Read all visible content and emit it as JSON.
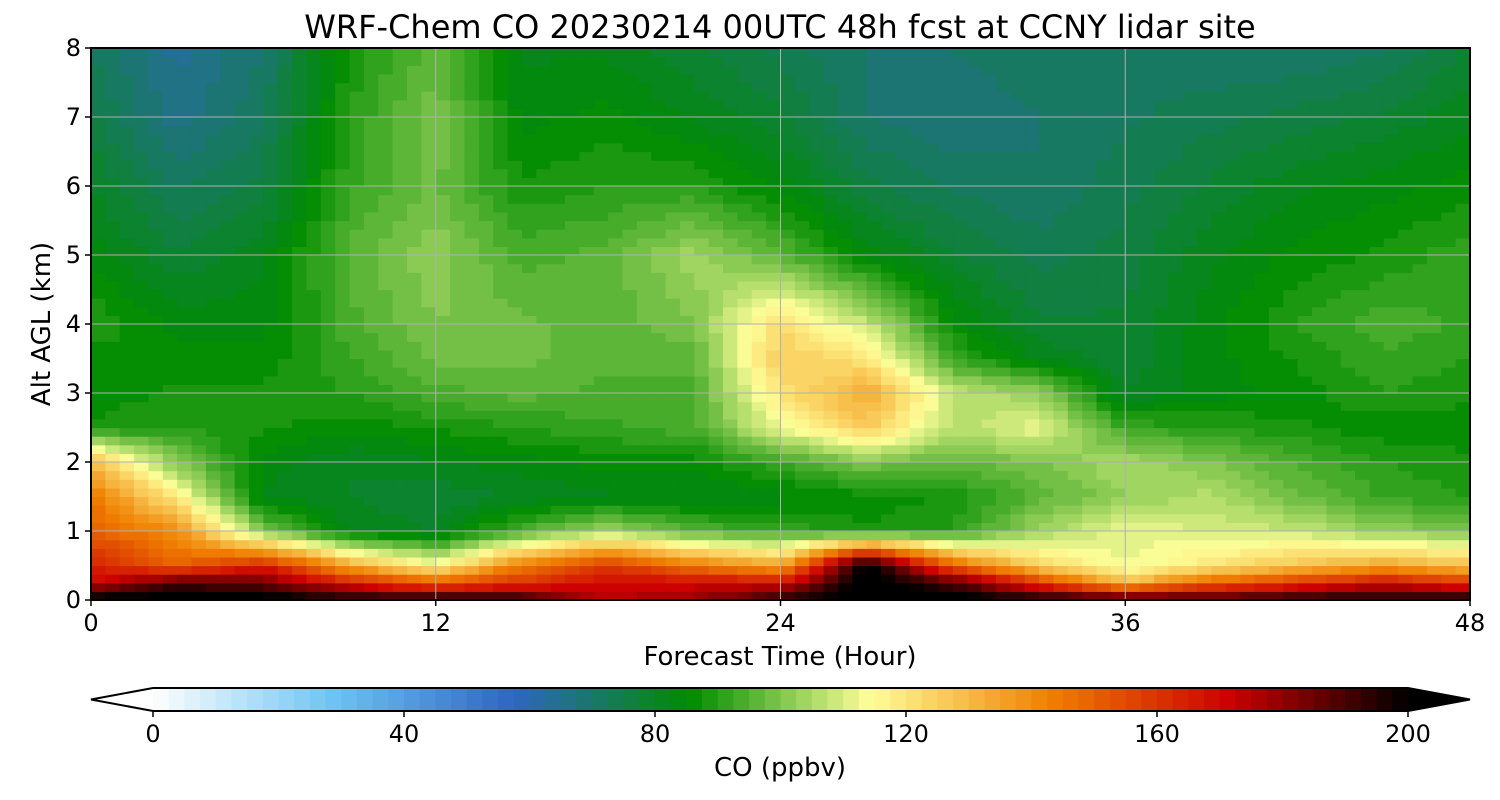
{
  "chart_data": {
    "type": "heatmap",
    "title": "WRF-Chem CO  20230214 00UTC 48h fcst at CCNY lidar site",
    "xlabel": "Forecast Time (Hour)",
    "ylabel": "Alt AGL (km)",
    "xlim": [
      0,
      48
    ],
    "ylim": [
      0,
      8
    ],
    "xticks": [
      "0",
      "12",
      "24",
      "36",
      "48"
    ],
    "yticks": [
      "0",
      "1",
      "2",
      "3",
      "4",
      "5",
      "6",
      "7",
      "8"
    ],
    "grid": true,
    "x_hours": [
      0,
      3,
      6,
      9,
      12,
      15,
      18,
      21,
      24,
      27,
      30,
      33,
      36,
      39,
      42,
      45,
      48
    ],
    "y_km": [
      0,
      0.25,
      0.5,
      1,
      1.5,
      2,
      2.5,
      3,
      3.5,
      4,
      5,
      6,
      7,
      8
    ],
    "values_ppbv": [
      [
        205,
        205,
        205,
        200,
        200,
        198,
        175,
        180,
        195,
        205,
        205,
        200,
        198,
        195,
        198,
        200,
        200
      ],
      [
        170,
        190,
        185,
        165,
        150,
        160,
        170,
        170,
        170,
        205,
        190,
        160,
        130,
        150,
        160,
        170,
        160
      ],
      [
        165,
        150,
        165,
        135,
        115,
        145,
        160,
        145,
        135,
        205,
        150,
        125,
        112,
        120,
        128,
        135,
        128
      ],
      [
        150,
        140,
        100,
        82,
        80,
        95,
        105,
        95,
        92,
        88,
        90,
        104,
        112,
        110,
        108,
        102,
        100
      ],
      [
        145,
        118,
        82,
        80,
        78,
        80,
        82,
        82,
        84,
        86,
        88,
        96,
        102,
        106,
        98,
        92,
        90
      ],
      [
        130,
        100,
        84,
        80,
        82,
        84,
        86,
        86,
        92,
        100,
        96,
        100,
        105,
        100,
        94,
        90,
        88
      ],
      [
        88,
        90,
        88,
        86,
        88,
        90,
        92,
        94,
        112,
        126,
        106,
        112,
        92,
        90,
        88,
        86,
        86
      ],
      [
        86,
        88,
        88,
        90,
        94,
        96,
        94,
        94,
        120,
        134,
        108,
        102,
        80,
        84,
        86,
        90,
        88
      ],
      [
        86,
        86,
        86,
        92,
        98,
        98,
        96,
        96,
        126,
        120,
        92,
        82,
        78,
        84,
        88,
        92,
        90
      ],
      [
        90,
        84,
        84,
        94,
        100,
        98,
        96,
        100,
        122,
        108,
        86,
        78,
        78,
        84,
        90,
        94,
        92
      ],
      [
        84,
        78,
        82,
        96,
        102,
        94,
        96,
        104,
        96,
        84,
        78,
        74,
        76,
        82,
        86,
        88,
        92
      ],
      [
        80,
        72,
        76,
        92,
        98,
        88,
        90,
        90,
        84,
        76,
        72,
        70,
        74,
        78,
        82,
        84,
        86
      ],
      [
        76,
        66,
        72,
        90,
        100,
        84,
        86,
        82,
        78,
        70,
        68,
        70,
        72,
        74,
        76,
        78,
        82
      ],
      [
        72,
        64,
        70,
        88,
        96,
        82,
        82,
        78,
        74,
        70,
        70,
        72,
        72,
        70,
        70,
        72,
        78
      ]
    ],
    "colorbar": {
      "label": "CO  (ppbv)",
      "ticks": [
        "0",
        "40",
        "80",
        "120",
        "160",
        "200"
      ],
      "min": 0,
      "max": 200,
      "step": 2.5,
      "extend": "both",
      "colors": [
        "#ffffff",
        "#6ec4f2",
        "#2f66c2",
        "#008c00",
        "#ffff99",
        "#f08000",
        "#cc0000",
        "#000000"
      ],
      "color_stops": [
        0,
        0.3,
        0.5,
        0.75,
        1,
        0.6,
        0.8,
        1
      ]
    }
  }
}
